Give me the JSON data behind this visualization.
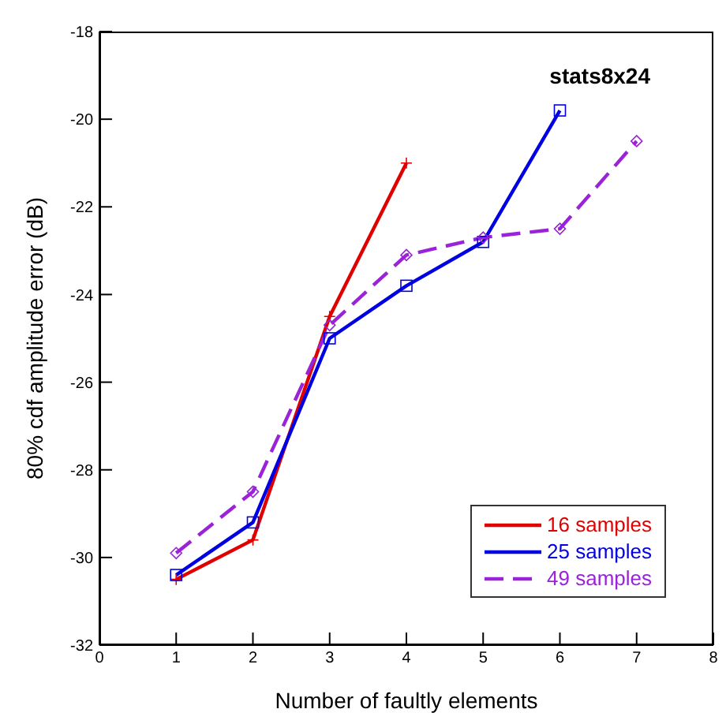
{
  "chart_data": {
    "type": "line",
    "xlabel": "Number of faultly elements",
    "ylabel": "80% cdf amplitude error (dB)",
    "annotations": [
      "stats8x24"
    ],
    "xlim": [
      0,
      8
    ],
    "xticks": [
      0,
      1,
      2,
      3,
      4,
      5,
      6,
      7,
      8
    ],
    "ylim": [
      -32,
      -18
    ],
    "yticks": [
      -32,
      -30,
      -28,
      -26,
      -24,
      -22,
      -20,
      -18
    ],
    "grid": false,
    "legend": "bottom right",
    "series": [
      {
        "name": "16 samples",
        "color": "#e00000",
        "x": [
          1,
          2,
          3,
          4
        ],
        "values": [
          -30.5,
          -29.6,
          -24.5,
          -21.0
        ],
        "marker": "cross",
        "line_style": "solid"
      },
      {
        "name": "25 samples",
        "color": "#0000e0",
        "x": [
          1,
          2,
          3,
          4,
          5,
          6
        ],
        "values": [
          -30.4,
          -29.2,
          -25.0,
          -23.8,
          -22.8,
          -19.8
        ],
        "marker": "square",
        "line_style": "solid"
      },
      {
        "name": "49 samples",
        "color": "#9a22d8",
        "x": [
          1,
          2,
          3,
          4,
          5,
          6,
          7
        ],
        "values": [
          -29.9,
          -28.5,
          -24.7,
          -23.1,
          -22.7,
          -22.5,
          -20.5
        ],
        "marker": "diamond",
        "line_style": "dashed"
      }
    ]
  }
}
